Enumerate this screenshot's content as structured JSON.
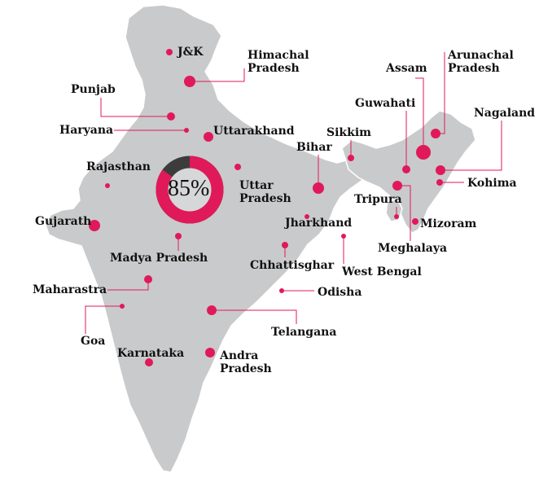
{
  "colors": {
    "land": "#c9cacb",
    "marker": "#e0195a",
    "leader": "#e0195a",
    "ring_fill": "#e0195a",
    "ring_remainder": "#3c3c3c",
    "text": "#111111"
  },
  "gauge": {
    "label": "85%",
    "value_percent": 85
  },
  "places": [
    {
      "key": "jk",
      "label": "J&K"
    },
    {
      "key": "himachal",
      "label": "Himachal\nPradesh"
    },
    {
      "key": "punjab",
      "label": "Punjab"
    },
    {
      "key": "haryana",
      "label": "Haryana"
    },
    {
      "key": "uttarakhand",
      "label": "Uttarakhand"
    },
    {
      "key": "rajasthan",
      "label": "Rajasthan"
    },
    {
      "key": "uttar_pradesh",
      "label": "Uttar\nPradesh"
    },
    {
      "key": "gujarath",
      "label": "Gujarath"
    },
    {
      "key": "madya_pradesh",
      "label": "Madya Pradesh"
    },
    {
      "key": "maharastra",
      "label": "Maharastra"
    },
    {
      "key": "goa",
      "label": "Goa"
    },
    {
      "key": "karnataka",
      "label": "Karnataka"
    },
    {
      "key": "andra_pradesh",
      "label": "Andra\nPradesh"
    },
    {
      "key": "telangana",
      "label": "Telangana"
    },
    {
      "key": "odisha",
      "label": "Odisha"
    },
    {
      "key": "chhattisghar",
      "label": "Chhattisghar"
    },
    {
      "key": "jharkhand",
      "label": "Jharkhand"
    },
    {
      "key": "west_bengal",
      "label": "West Bengal"
    },
    {
      "key": "bihar",
      "label": "Bihar"
    },
    {
      "key": "sikkim",
      "label": "Sikkim"
    },
    {
      "key": "guwahati",
      "label": "Guwahati"
    },
    {
      "key": "assam",
      "label": "Assam"
    },
    {
      "key": "arunachal",
      "label": "Arunachal\nPradesh"
    },
    {
      "key": "nagaland",
      "label": "Nagaland"
    },
    {
      "key": "kohima",
      "label": "Kohima"
    },
    {
      "key": "tripura",
      "label": "Tripura"
    },
    {
      "key": "mizoram",
      "label": "Mizoram"
    },
    {
      "key": "meghalaya",
      "label": "Meghalaya"
    }
  ]
}
